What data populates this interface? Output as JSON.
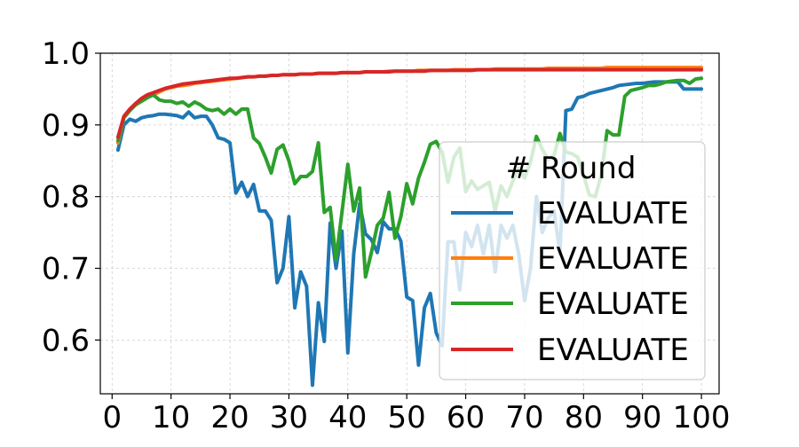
{
  "chart_data": {
    "type": "line",
    "title": "",
    "xlabel": "",
    "ylabel": "",
    "xlim": [
      -2,
      103
    ],
    "ylim": [
      0.525,
      1.0
    ],
    "xticks": [
      0,
      10,
      20,
      30,
      40,
      50,
      60,
      70,
      80,
      90,
      100
    ],
    "xtick_labels": [
      "0",
      "10",
      "20",
      "30",
      "40",
      "50",
      "60",
      "70",
      "80",
      "90",
      "100"
    ],
    "yticks": [
      0.6,
      0.7,
      0.8,
      0.9,
      1.0
    ],
    "ytick_labels": [
      "0.6",
      "0.7",
      "0.8",
      "0.9",
      "1.0"
    ],
    "grid": true,
    "legend": {
      "title": "# Round",
      "placement": "lower-right",
      "entries": [
        "EVALUATE",
        "EVALUATE",
        "EVALUATE",
        "EVALUATE"
      ]
    },
    "x_start": 1,
    "series": [
      {
        "name": "EVALUATE",
        "color": "#1f77b4",
        "values": [
          0.865,
          0.9,
          0.908,
          0.905,
          0.91,
          0.912,
          0.913,
          0.915,
          0.915,
          0.914,
          0.913,
          0.91,
          0.918,
          0.91,
          0.912,
          0.912,
          0.9,
          0.882,
          0.88,
          0.875,
          0.805,
          0.82,
          0.8,
          0.817,
          0.78,
          0.78,
          0.767,
          0.68,
          0.7,
          0.772,
          0.645,
          0.695,
          0.675,
          0.537,
          0.652,
          0.598,
          0.763,
          0.7,
          0.752,
          0.582,
          0.72,
          0.79,
          0.748,
          0.74,
          0.722,
          0.765,
          0.755,
          0.755,
          0.738,
          0.66,
          0.655,
          0.565,
          0.645,
          0.665,
          0.61,
          0.592,
          0.737,
          0.737,
          0.67,
          0.75,
          0.73,
          0.76,
          0.72,
          0.76,
          0.695,
          0.76,
          0.742,
          0.76,
          0.72,
          0.655,
          0.7,
          0.8,
          0.75,
          0.77,
          0.78,
          0.72,
          0.92,
          0.922,
          0.938,
          0.94,
          0.944,
          0.946,
          0.948,
          0.95,
          0.952,
          0.955,
          0.956,
          0.957,
          0.958,
          0.958,
          0.959,
          0.96,
          0.96,
          0.96,
          0.96,
          0.96,
          0.95,
          0.95,
          0.95,
          0.95
        ]
      },
      {
        "name": "EVALUATE",
        "color": "#ff7f0e",
        "values": [
          0.875,
          0.91,
          0.92,
          0.93,
          0.935,
          0.94,
          0.942,
          0.946,
          0.95,
          0.952,
          0.954,
          0.955,
          0.956,
          0.958,
          0.959,
          0.96,
          0.961,
          0.962,
          0.963,
          0.964,
          0.965,
          0.966,
          0.967,
          0.967,
          0.968,
          0.968,
          0.969,
          0.969,
          0.97,
          0.97,
          0.97,
          0.971,
          0.971,
          0.971,
          0.972,
          0.972,
          0.972,
          0.972,
          0.973,
          0.973,
          0.973,
          0.973,
          0.974,
          0.974,
          0.974,
          0.974,
          0.975,
          0.975,
          0.975,
          0.975,
          0.975,
          0.976,
          0.976,
          0.976,
          0.976,
          0.976,
          0.976,
          0.977,
          0.977,
          0.977,
          0.977,
          0.977,
          0.977,
          0.977,
          0.978,
          0.978,
          0.978,
          0.978,
          0.978,
          0.978,
          0.978,
          0.978,
          0.978,
          0.979,
          0.979,
          0.979,
          0.979,
          0.979,
          0.979,
          0.979,
          0.979,
          0.979,
          0.979,
          0.98,
          0.98,
          0.98,
          0.98,
          0.98,
          0.98,
          0.98,
          0.98,
          0.98,
          0.98,
          0.98,
          0.98,
          0.98,
          0.98,
          0.98,
          0.98,
          0.98
        ]
      },
      {
        "name": "EVALUATE",
        "color": "#2ca02c",
        "values": [
          0.878,
          0.91,
          0.92,
          0.928,
          0.933,
          0.938,
          0.942,
          0.935,
          0.933,
          0.933,
          0.93,
          0.932,
          0.926,
          0.932,
          0.928,
          0.922,
          0.92,
          0.922,
          0.915,
          0.922,
          0.915,
          0.922,
          0.922,
          0.882,
          0.874,
          0.855,
          0.833,
          0.866,
          0.872,
          0.85,
          0.818,
          0.828,
          0.828,
          0.835,
          0.875,
          0.778,
          0.785,
          0.712,
          0.778,
          0.845,
          0.78,
          0.812,
          0.688,
          0.722,
          0.76,
          0.77,
          0.806,
          0.742,
          0.772,
          0.818,
          0.79,
          0.826,
          0.848,
          0.873,
          0.877,
          0.862,
          0.82,
          0.855,
          0.868,
          0.807,
          0.822,
          0.81,
          0.815,
          0.82,
          0.78,
          0.815,
          0.8,
          0.822,
          0.84,
          0.826,
          0.848,
          0.884,
          0.866,
          0.852,
          0.858,
          0.888,
          0.862,
          0.86,
          0.855,
          0.83,
          0.802,
          0.8,
          0.83,
          0.892,
          0.886,
          0.886,
          0.94,
          0.948,
          0.95,
          0.952,
          0.955,
          0.955,
          0.957,
          0.96,
          0.961,
          0.962,
          0.962,
          0.958,
          0.964,
          0.965
        ]
      },
      {
        "name": "EVALUATE",
        "color": "#d62728",
        "values": [
          0.883,
          0.912,
          0.922,
          0.93,
          0.937,
          0.942,
          0.945,
          0.948,
          0.951,
          0.953,
          0.955,
          0.957,
          0.958,
          0.959,
          0.96,
          0.961,
          0.962,
          0.963,
          0.964,
          0.965,
          0.965,
          0.966,
          0.967,
          0.967,
          0.968,
          0.968,
          0.969,
          0.969,
          0.97,
          0.97,
          0.97,
          0.971,
          0.971,
          0.971,
          0.972,
          0.972,
          0.972,
          0.972,
          0.973,
          0.973,
          0.973,
          0.973,
          0.974,
          0.974,
          0.974,
          0.974,
          0.974,
          0.975,
          0.975,
          0.975,
          0.975,
          0.975,
          0.975,
          0.976,
          0.976,
          0.976,
          0.976,
          0.976,
          0.976,
          0.976,
          0.976,
          0.977,
          0.977,
          0.977,
          0.977,
          0.977,
          0.977,
          0.977,
          0.977,
          0.977,
          0.977,
          0.977,
          0.977,
          0.977,
          0.977,
          0.977,
          0.977,
          0.977,
          0.977,
          0.977,
          0.977,
          0.977,
          0.977,
          0.977,
          0.977,
          0.977,
          0.977,
          0.977,
          0.977,
          0.977,
          0.977,
          0.977,
          0.977,
          0.977,
          0.977,
          0.977,
          0.977,
          0.977,
          0.977,
          0.977
        ]
      }
    ]
  }
}
